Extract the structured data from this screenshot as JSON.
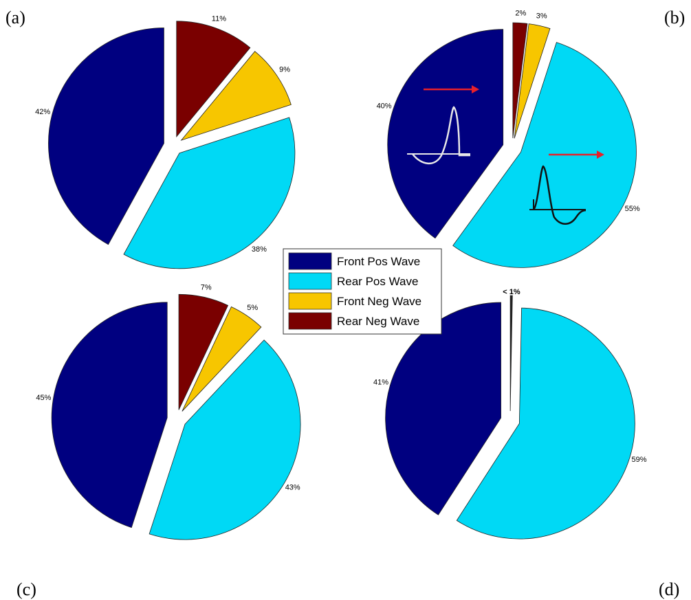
{
  "chart_data": [
    {
      "type": "pie",
      "panel_label": "(a)",
      "slices": [
        {
          "name": "Rear Neg Wave",
          "value": 11,
          "label": "11%"
        },
        {
          "name": "Front Neg Wave",
          "value": 9,
          "label": "9%"
        },
        {
          "name": "Rear Pos Wave",
          "value": 38,
          "label": "38%"
        },
        {
          "name": "Front Pos Wave",
          "value": 42,
          "label": "42%"
        }
      ]
    },
    {
      "type": "pie",
      "panel_label": "(b)",
      "slices": [
        {
          "name": "Rear Neg Wave",
          "value": 2,
          "label": "2%"
        },
        {
          "name": "Front Neg Wave",
          "value": 3,
          "label": "3%"
        },
        {
          "name": "Rear Pos Wave",
          "value": 55,
          "label": "55%"
        },
        {
          "name": "Front Pos Wave",
          "value": 40,
          "label": "40%"
        }
      ],
      "annotations": [
        "wave sketches with red arrows"
      ]
    },
    {
      "type": "pie",
      "panel_label": "(c)",
      "slices": [
        {
          "name": "Rear Neg Wave",
          "value": 7,
          "label": "7%"
        },
        {
          "name": "Front Neg Wave",
          "value": 5,
          "label": "5%"
        },
        {
          "name": "Rear Pos Wave",
          "value": 43,
          "label": "43%"
        },
        {
          "name": "Front Pos Wave",
          "value": 45,
          "label": "45%"
        }
      ]
    },
    {
      "type": "pie",
      "panel_label": "(d)",
      "slices": [
        {
          "name": "Neg Wave",
          "value": 0.3,
          "label": "< 1%"
        },
        {
          "name": "Rear Pos Wave",
          "value": 59,
          "label": "59%"
        },
        {
          "name": "Front Pos Wave",
          "value": 41,
          "label": "41%"
        }
      ]
    }
  ],
  "legend": {
    "placement": "center",
    "entries": [
      {
        "name": "Front Pos Wave",
        "color": "#000080"
      },
      {
        "name": "Rear Pos Wave",
        "color": "#00d9f5"
      },
      {
        "name": "Front Neg Wave",
        "color": "#f7c600"
      },
      {
        "name": "Rear Neg Wave",
        "color": "#7a0000"
      }
    ]
  },
  "colors": {
    "Front Pos Wave": "#000080",
    "Rear Pos Wave": "#00d9f5",
    "Front Neg Wave": "#f7c600",
    "Rear Neg Wave": "#7a0000",
    "Neg Wave": "#222222",
    "arrow": "#e8202a"
  }
}
